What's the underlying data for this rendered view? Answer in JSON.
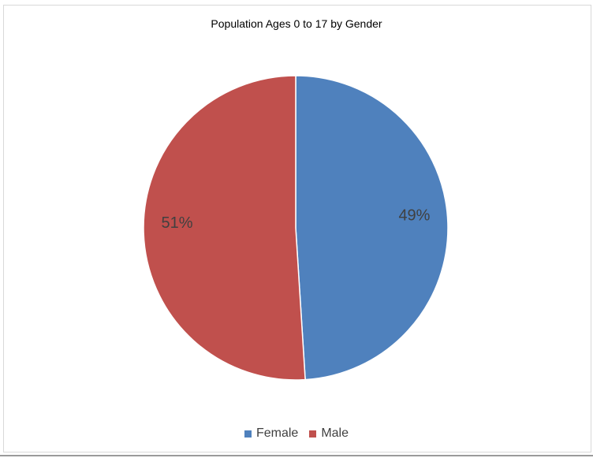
{
  "chart_data": {
    "type": "pie",
    "title": "Population Ages 0 to 17 by Gender",
    "categories": [
      "Female",
      "Male"
    ],
    "values": [
      49,
      51
    ],
    "data_labels": [
      "49%",
      "51%"
    ],
    "colors": [
      "#4f81bd",
      "#c0504d"
    ],
    "legend_placement": "bottom",
    "start_angle_deg": 0,
    "direction": "clockwise"
  }
}
